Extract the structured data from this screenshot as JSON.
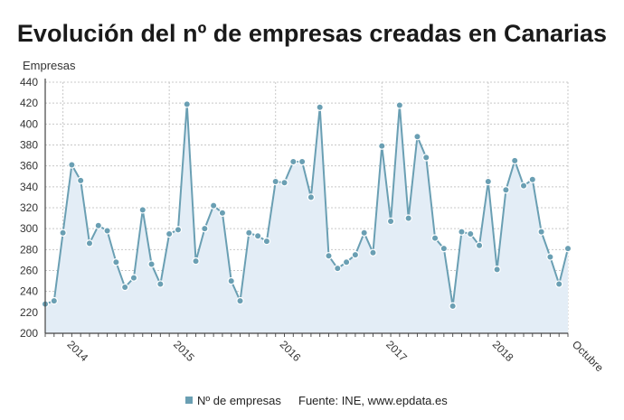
{
  "chart_data": {
    "type": "area",
    "title": "Evolución del nº de empresas creadas en Canarias",
    "ylabel": "Empresas",
    "xlabel": "",
    "ylim": [
      200,
      440
    ],
    "yticks": [
      200,
      220,
      240,
      260,
      280,
      300,
      320,
      340,
      360,
      380,
      400,
      420,
      440
    ],
    "x_tick_labels": [
      "2014",
      "2015",
      "2016",
      "2017",
      "2018",
      "Octubre"
    ],
    "grid": true,
    "series": [
      {
        "name": "Nº de empresas",
        "color": "#6a9fb3",
        "fill": "#e3edf6",
        "x": [
          "2013-11",
          "2013-12",
          "2014-01",
          "2014-02",
          "2014-03",
          "2014-04",
          "2014-05",
          "2014-06",
          "2014-07",
          "2014-08",
          "2014-09",
          "2014-10",
          "2014-11",
          "2014-12",
          "2015-01",
          "2015-02",
          "2015-03",
          "2015-04",
          "2015-05",
          "2015-06",
          "2015-07",
          "2015-08",
          "2015-09",
          "2015-10",
          "2015-11",
          "2015-12",
          "2016-01",
          "2016-02",
          "2016-03",
          "2016-04",
          "2016-05",
          "2016-06",
          "2016-07",
          "2016-08",
          "2016-09",
          "2016-10",
          "2016-11",
          "2016-12",
          "2017-01",
          "2017-02",
          "2017-03",
          "2017-04",
          "2017-05",
          "2017-06",
          "2017-07",
          "2017-08",
          "2017-09",
          "2017-10",
          "2017-11",
          "2017-12",
          "2018-01",
          "2018-02",
          "2018-03",
          "2018-04",
          "2018-05",
          "2018-06",
          "2018-07",
          "2018-08",
          "2018-09",
          "2018-10"
        ],
        "values": [
          228,
          231,
          296,
          361,
          346,
          286,
          303,
          298,
          268,
          244,
          253,
          318,
          266,
          247,
          295,
          299,
          419,
          269,
          300,
          322,
          315,
          250,
          231,
          296,
          293,
          288,
          345,
          344,
          364,
          364,
          330,
          416,
          274,
          262,
          268,
          275,
          296,
          277,
          379,
          307,
          418,
          310,
          388,
          368,
          291,
          281,
          226,
          297,
          295,
          284,
          345,
          261,
          337,
          365,
          341,
          347,
          297,
          273,
          247,
          281
        ]
      }
    ],
    "legend": {
      "position": "bottom",
      "label": "Nº de empresas"
    },
    "source": "Fuente: INE, www.epdata.es"
  },
  "colors": {
    "line": "#6a9fb3",
    "area": "#e3edf6",
    "grid": "#c8c8c8"
  }
}
